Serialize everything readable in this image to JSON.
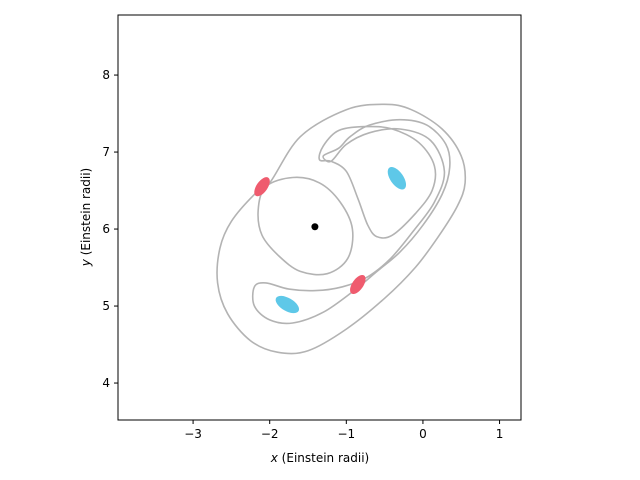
{
  "chart_data": {
    "type": "contour",
    "xlabel_var": "x",
    "xlabel_unit": " (Einstein radii)",
    "ylabel_var": "y",
    "ylabel_unit": " (Einstein radii)",
    "xlim": [
      -3.98,
      1.28
    ],
    "ylim": [
      3.52,
      8.78
    ],
    "xticks": [
      -3,
      -2,
      -1,
      0,
      1
    ],
    "xtick_labels": [
      "−3",
      "−2",
      "−1",
      "0",
      "1"
    ],
    "yticks": [
      4,
      5,
      6,
      7,
      8
    ],
    "ytick_labels": [
      "4",
      "5",
      "6",
      "7",
      "8"
    ],
    "grid": false,
    "lens_center": {
      "x": -1.41,
      "y": 6.03,
      "color": "#000000"
    },
    "contour_color": "#b3b3b3",
    "contours": [
      {
        "name": "outer",
        "points": [
          [
            -2.0,
            6.6
          ],
          [
            -1.6,
            7.2
          ],
          [
            -1.0,
            7.55
          ],
          [
            -0.5,
            7.62
          ],
          [
            -0.15,
            7.55
          ],
          [
            0.25,
            7.3
          ],
          [
            0.5,
            6.95
          ],
          [
            0.55,
            6.6
          ],
          [
            0.45,
            6.3
          ],
          [
            0.2,
            5.9
          ],
          [
            -0.1,
            5.5
          ],
          [
            -0.5,
            5.1
          ],
          [
            -1.0,
            4.7
          ],
          [
            -1.5,
            4.42
          ],
          [
            -1.9,
            4.4
          ],
          [
            -2.25,
            4.55
          ],
          [
            -2.55,
            4.9
          ],
          [
            -2.68,
            5.3
          ],
          [
            -2.65,
            5.75
          ],
          [
            -2.5,
            6.1
          ],
          [
            -2.2,
            6.45
          ]
        ]
      },
      {
        "name": "right-loop",
        "points": [
          [
            -1.3,
            6.95
          ],
          [
            -1.1,
            7.05
          ],
          [
            -0.95,
            7.2
          ],
          [
            -0.7,
            7.35
          ],
          [
            -0.3,
            7.42
          ],
          [
            0.05,
            7.35
          ],
          [
            0.3,
            7.1
          ],
          [
            0.35,
            6.8
          ],
          [
            0.25,
            6.45
          ],
          [
            0.0,
            6.05
          ],
          [
            -0.3,
            5.7
          ],
          [
            -0.6,
            5.45
          ],
          [
            -0.9,
            5.2
          ],
          [
            -1.3,
            4.92
          ],
          [
            -1.7,
            4.78
          ],
          [
            -2.0,
            4.82
          ],
          [
            -2.2,
            5.0
          ],
          [
            -2.2,
            5.25
          ],
          [
            -2.05,
            5.3
          ],
          [
            -1.75,
            5.22
          ],
          [
            -1.4,
            5.2
          ],
          [
            -1.05,
            5.25
          ],
          [
            -0.72,
            5.38
          ],
          [
            -0.42,
            5.62
          ],
          [
            -0.12,
            5.98
          ],
          [
            0.15,
            6.35
          ],
          [
            0.28,
            6.75
          ],
          [
            0.1,
            7.15
          ],
          [
            -0.3,
            7.3
          ],
          [
            -0.7,
            7.25
          ],
          [
            -1.0,
            7.1
          ],
          [
            -1.2,
            6.88
          ]
        ]
      },
      {
        "name": "inner-right",
        "points": [
          [
            -1.35,
            6.9
          ],
          [
            -1.3,
            7.08
          ],
          [
            -1.1,
            7.28
          ],
          [
            -0.75,
            7.33
          ],
          [
            -0.4,
            7.3
          ],
          [
            -0.05,
            7.12
          ],
          [
            0.15,
            6.82
          ],
          [
            0.12,
            6.5
          ],
          [
            -0.1,
            6.2
          ],
          [
            -0.4,
            5.92
          ],
          [
            -0.6,
            5.9
          ],
          [
            -0.72,
            6.05
          ],
          [
            -0.85,
            6.4
          ],
          [
            -1.0,
            6.75
          ],
          [
            -1.2,
            6.88
          ]
        ]
      },
      {
        "name": "inner-left",
        "points": [
          [
            -2.05,
            6.55
          ],
          [
            -1.7,
            6.67
          ],
          [
            -1.35,
            6.6
          ],
          [
            -1.08,
            6.35
          ],
          [
            -0.92,
            6.0
          ],
          [
            -0.98,
            5.62
          ],
          [
            -1.25,
            5.42
          ],
          [
            -1.6,
            5.45
          ],
          [
            -1.88,
            5.65
          ],
          [
            -2.1,
            5.92
          ],
          [
            -2.15,
            6.25
          ]
        ]
      }
    ],
    "images": [
      {
        "x": -2.1,
        "y": 6.55,
        "color": "#ef5b6e",
        "type": "saddle"
      },
      {
        "x": -0.85,
        "y": 5.28,
        "color": "#ef5b6e",
        "type": "saddle"
      },
      {
        "x": -0.34,
        "y": 6.66,
        "color": "#5ec8e8",
        "type": "minimum"
      },
      {
        "x": -1.77,
        "y": 5.02,
        "color": "#5ec8e8",
        "type": "minimum"
      }
    ]
  }
}
